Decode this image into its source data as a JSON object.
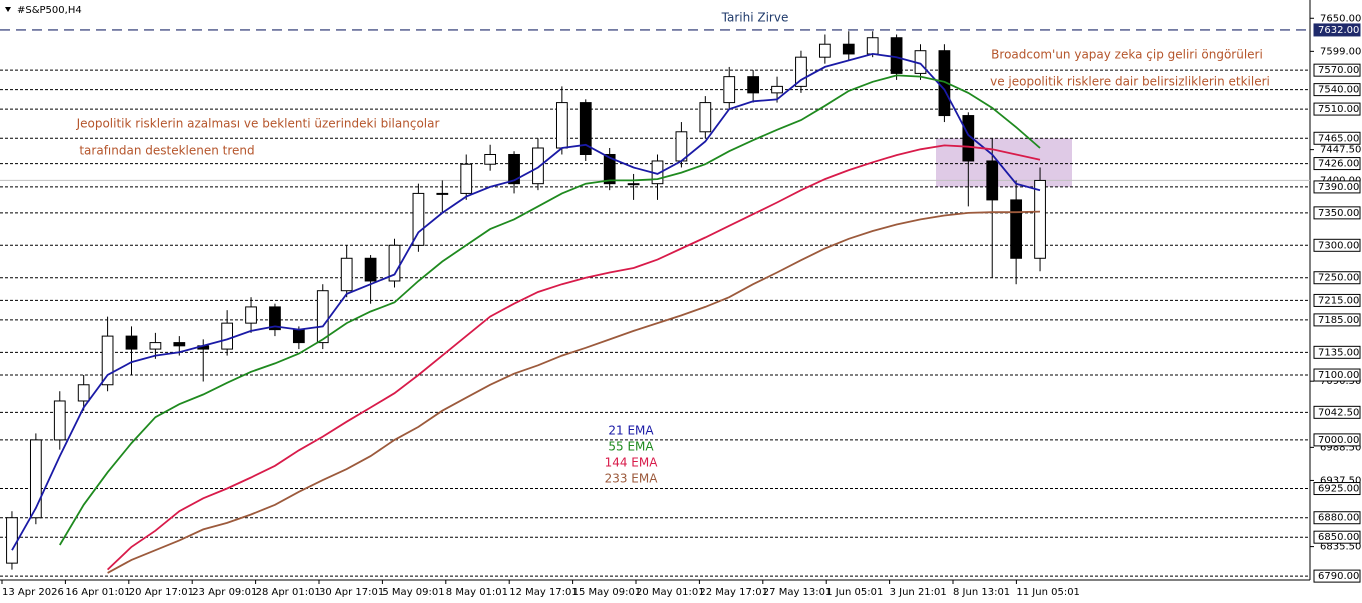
{
  "chart_data": {
    "type": "candlestick",
    "symbol": "#S&P500,H4",
    "ylim": [
      6784,
      7672
    ],
    "yticks": [
      {
        "value": 7650,
        "label": "7650.00"
      },
      {
        "value": 7599,
        "label": "7599.00"
      },
      {
        "value": 7447.5,
        "label": "7447.50"
      },
      {
        "value": 7090.5,
        "label": "7090.50"
      },
      {
        "value": 6988.5,
        "label": "6988.50"
      },
      {
        "value": 6937.5,
        "label": "6937.50"
      },
      {
        "value": 6835.5,
        "label": "6835.50"
      }
    ],
    "levels": [
      {
        "value": 7632,
        "label": "7632.00",
        "color": "#1f2a6b"
      },
      {
        "value": 7570,
        "label": "7570.00",
        "color": "#000000"
      },
      {
        "value": 7540,
        "label": "7540.00",
        "color": "#000000"
      },
      {
        "value": 7510,
        "label": "7510.00",
        "color": "#000000"
      },
      {
        "value": 7465,
        "label": "7465.00",
        "color": "#000000"
      },
      {
        "value": 7426,
        "label": "7426.00",
        "color": "#000000"
      },
      {
        "value": 7390,
        "label": "7390.00",
        "color": "#000000"
      },
      {
        "value": 7350,
        "label": "7350.00",
        "color": "#000000"
      },
      {
        "value": 7300,
        "label": "7300.00",
        "color": "#000000"
      },
      {
        "value": 7250,
        "label": "7250.00",
        "color": "#000000"
      },
      {
        "value": 7215,
        "label": "7215.00",
        "color": "#000000"
      },
      {
        "value": 7185,
        "label": "7185.00",
        "color": "#000000"
      },
      {
        "value": 7135,
        "label": "7135.00",
        "color": "#000000"
      },
      {
        "value": 7100,
        "label": "7100.00",
        "color": "#000000"
      },
      {
        "value": 7042.5,
        "label": "7042.50",
        "color": "#000000"
      },
      {
        "value": 7000,
        "label": "7000.00",
        "color": "#000000"
      },
      {
        "value": 6925,
        "label": "6925.00",
        "color": "#000000"
      },
      {
        "value": 6880,
        "label": "6880.00",
        "color": "#000000"
      },
      {
        "value": 6850,
        "label": "6850.00",
        "color": "#000000"
      },
      {
        "value": 6790,
        "label": "6790.00",
        "color": "#000000"
      }
    ],
    "current_price": {
      "value": 7400,
      "label": "7400.00"
    },
    "zone": {
      "from": 7390,
      "to": 7465,
      "color": "#c9a6d6"
    },
    "xtick_labels": [
      "13 Apr 2026",
      "16 Apr 01:01",
      "20 Apr 17:01",
      "23 Apr 09:01",
      "28 Apr 01:01",
      "30 Apr 17:01",
      "5 May 09:01",
      "8 May 01:01",
      "12 May 17:01",
      "15 May 09:01",
      "20 May 01:01",
      "22 May 17:01",
      "27 May 13:01",
      "1 Jun 05:01",
      "3 Jun 21:01",
      "8 Jun 13:01",
      "11 Jun 05:01"
    ],
    "open": [
      6810,
      6880,
      7000,
      7060,
      7085,
      7160,
      7140,
      7150,
      7145,
      7140,
      7180,
      7205,
      7170,
      7150,
      7230,
      7280,
      7245,
      7300,
      7380,
      7380,
      7425,
      7440,
      7395,
      7450,
      7520,
      7440,
      7395,
      7395,
      7430,
      7475,
      7520,
      7560,
      7535,
      7545,
      7590,
      7610,
      7595,
      7620,
      7565,
      7600,
      7500,
      7430,
      7370,
      7280
    ],
    "high": [
      6890,
      7010,
      7075,
      7100,
      7190,
      7175,
      7165,
      7160,
      7155,
      7200,
      7220,
      7210,
      7175,
      7240,
      7300,
      7285,
      7310,
      7395,
      7400,
      7440,
      7455,
      7445,
      7465,
      7545,
      7525,
      7450,
      7410,
      7440,
      7490,
      7530,
      7575,
      7570,
      7560,
      7600,
      7625,
      7630,
      7630,
      7625,
      7610,
      7610,
      7505,
      7465,
      7400,
      7420
    ],
    "low": [
      6800,
      6870,
      6985,
      7045,
      7075,
      7100,
      7125,
      7130,
      7090,
      7130,
      7165,
      7160,
      7140,
      7140,
      7220,
      7210,
      7235,
      7290,
      7350,
      7370,
      7415,
      7380,
      7385,
      7440,
      7430,
      7385,
      7370,
      7370,
      7420,
      7465,
      7510,
      7520,
      7520,
      7535,
      7580,
      7585,
      7590,
      7555,
      7555,
      7490,
      7360,
      7250,
      7240,
      7260
    ],
    "close": [
      6880,
      7000,
      7060,
      7085,
      7160,
      7140,
      7150,
      7145,
      7140,
      7180,
      7205,
      7170,
      7150,
      7230,
      7280,
      7245,
      7300,
      7380,
      7380,
      7425,
      7440,
      7395,
      7450,
      7520,
      7440,
      7395,
      7395,
      7430,
      7475,
      7520,
      7560,
      7535,
      7545,
      7590,
      7610,
      7595,
      7620,
      7565,
      7600,
      7500,
      7430,
      7370,
      7280,
      7400
    ],
    "series": [
      {
        "name": "21 EMA",
        "color": "#1a1aa6",
        "values": [
          6830,
          6895,
          6975,
          7050,
          7100,
          7120,
          7130,
          7135,
          7145,
          7155,
          7168,
          7175,
          7170,
          7175,
          7225,
          7240,
          7255,
          7320,
          7350,
          7375,
          7390,
          7400,
          7420,
          7450,
          7455,
          7435,
          7420,
          7410,
          7430,
          7460,
          7510,
          7522,
          7525,
          7555,
          7575,
          7585,
          7595,
          7590,
          7580,
          7540,
          7470,
          7440,
          7395,
          7385
        ]
      },
      {
        "name": "55 EMA",
        "color": "#1f8a1f",
        "values": [
          null,
          null,
          6838,
          6900,
          6950,
          6995,
          7035,
          7055,
          7070,
          7088,
          7105,
          7118,
          7133,
          7155,
          7180,
          7198,
          7212,
          7245,
          7275,
          7300,
          7325,
          7340,
          7360,
          7380,
          7395,
          7400,
          7400,
          7402,
          7412,
          7425,
          7445,
          7462,
          7478,
          7493,
          7515,
          7538,
          7552,
          7562,
          7560,
          7552,
          7535,
          7512,
          7482,
          7450
        ]
      },
      {
        "name": "144 EMA",
        "color": "#d81b4a",
        "values": [
          null,
          null,
          null,
          null,
          6800,
          6835,
          6860,
          6890,
          6910,
          6925,
          6942,
          6960,
          6984,
          7005,
          7028,
          7050,
          7072,
          7100,
          7130,
          7160,
          7190,
          7210,
          7228,
          7240,
          7250,
          7258,
          7265,
          7278,
          7295,
          7312,
          7330,
          7348,
          7366,
          7385,
          7402,
          7416,
          7428,
          7439,
          7448,
          7454,
          7452,
          7448,
          7440,
          7432
        ]
      },
      {
        "name": "233 EMA",
        "color": "#9c5a3c",
        "values": [
          null,
          null,
          null,
          null,
          6795,
          6815,
          6830,
          6845,
          6862,
          6872,
          6885,
          6900,
          6920,
          6938,
          6955,
          6975,
          7000,
          7020,
          7045,
          7065,
          7085,
          7102,
          7115,
          7130,
          7142,
          7155,
          7168,
          7180,
          7192,
          7205,
          7220,
          7240,
          7258,
          7277,
          7295,
          7310,
          7322,
          7332,
          7340,
          7346,
          7350,
          7351,
          7351,
          7352
        ]
      }
    ],
    "annotations": [
      {
        "text": "Tarihi Zirve",
        "color": "#1f3a6b"
      },
      {
        "text": "Broadcom'un yapay zeka çip geliri öngörüleri",
        "color": "#b5552b"
      },
      {
        "text": "ve jeopolitik risklere dair belirsizliklerin etkileri",
        "color": "#b5552b"
      },
      {
        "text": "Jeopolitik risklerin azalması ve beklenti üzerindeki bilançolar",
        "color": "#b5552b"
      },
      {
        "text": "tarafından desteklenen trend",
        "color": "#b5552b"
      }
    ]
  }
}
